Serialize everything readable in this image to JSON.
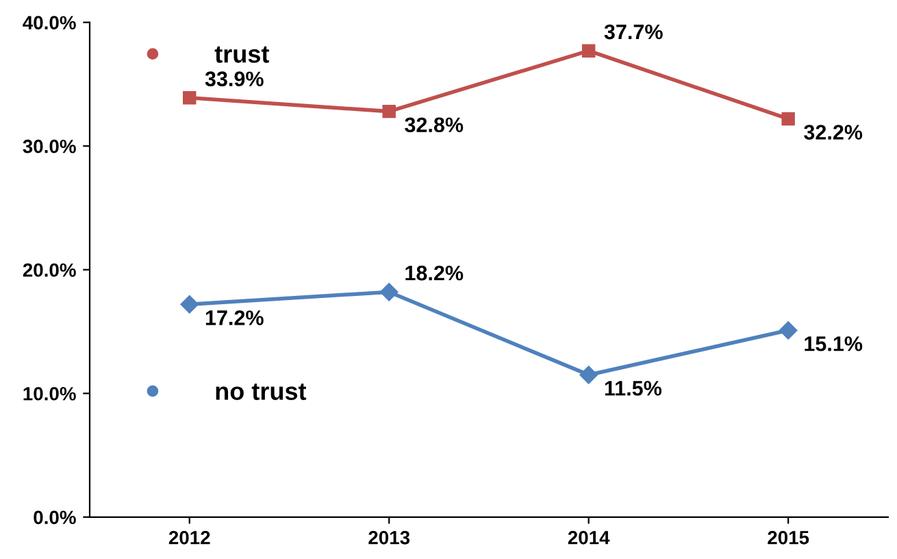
{
  "chart_data": {
    "type": "line",
    "categories": [
      "2012",
      "2013",
      "2014",
      "2015"
    ],
    "series": [
      {
        "name": "trust",
        "color": "#c0504d",
        "marker": "square",
        "values": [
          33.9,
          32.8,
          37.7,
          32.2
        ],
        "value_labels": [
          "33.9%",
          "32.8%",
          "37.7%",
          "32.2%"
        ]
      },
      {
        "name": "no trust",
        "color": "#4f81bd",
        "marker": "diamond",
        "values": [
          17.2,
          18.2,
          11.5,
          15.1
        ],
        "value_labels": [
          "17.2%",
          "18.2%",
          "11.5%",
          "15.1%"
        ]
      }
    ],
    "ylim": [
      0,
      40
    ],
    "yticks": [
      {
        "value": 0,
        "label": "0.0%"
      },
      {
        "value": 10,
        "label": "10.0%"
      },
      {
        "value": 20,
        "label": "20.0%"
      },
      {
        "value": 30,
        "label": "30.0%"
      },
      {
        "value": 40,
        "label": "40.0%"
      }
    ],
    "grid": false,
    "legend": "left",
    "line_style": "solid"
  }
}
